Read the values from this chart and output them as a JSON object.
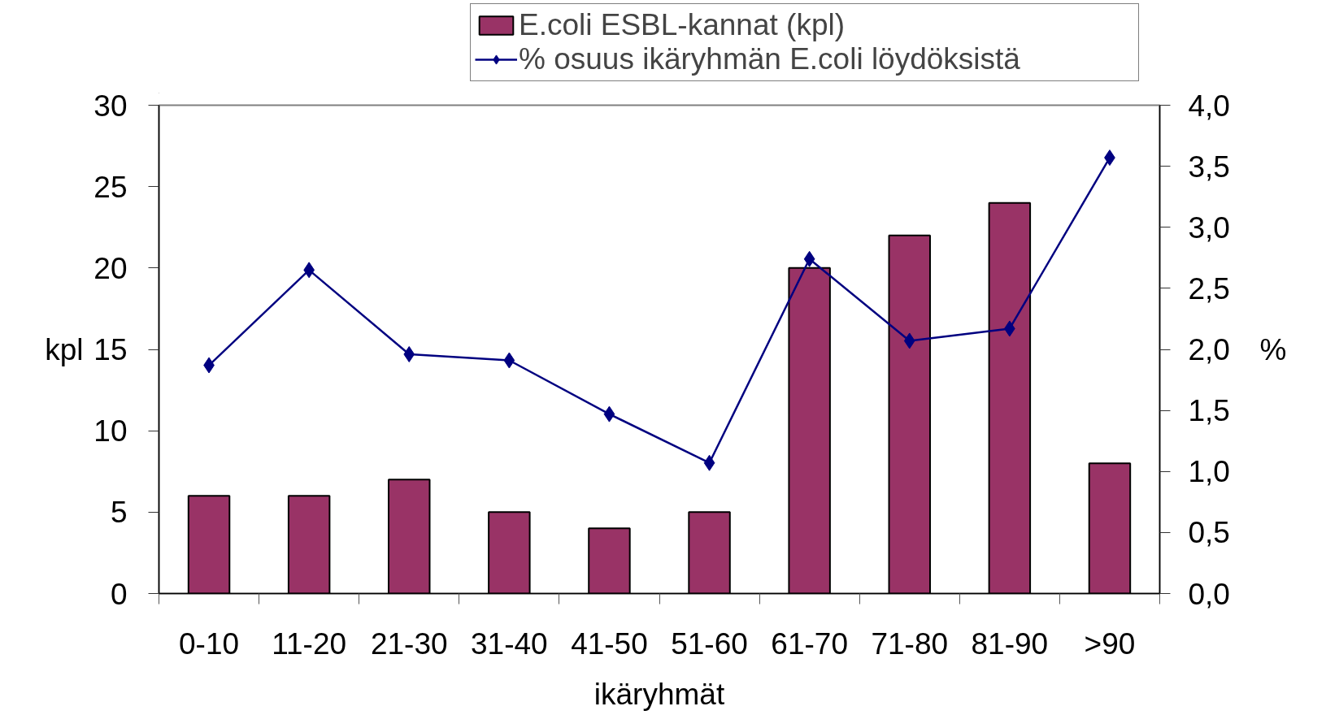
{
  "chart_data": {
    "type": "bar",
    "xlabel": "ikäryhmät",
    "ylabel": "kpl",
    "y2label": "%",
    "categories": [
      "0-10",
      "11-20",
      "21-30",
      "31-40",
      "41-50",
      "51-60",
      "61-70",
      "71-80",
      "81-90",
      ">90"
    ],
    "series": [
      {
        "name": "E.coli ESBL-kannat (kpl)",
        "color": "#993366",
        "values": [
          6,
          6,
          7,
          5,
          4,
          5,
          20,
          22,
          24,
          8
        ]
      },
      {
        "name": "% osuus ikäryhmän E.coli löydöksistä",
        "type": "line",
        "axis": "y2",
        "color": "#000080",
        "values": [
          1.87,
          2.65,
          1.96,
          1.91,
          1.47,
          1.07,
          2.74,
          2.07,
          2.17,
          3.57
        ]
      }
    ],
    "ylim": [
      0,
      30
    ],
    "yticks": [
      0,
      5,
      10,
      15,
      20,
      25,
      30
    ],
    "y2lim": [
      0,
      4
    ],
    "y2ticks": [
      {
        "value": 0,
        "label": "0,0"
      },
      {
        "value": 0.5,
        "label": "0,5"
      },
      {
        "value": 1,
        "label": "1,0"
      },
      {
        "value": 1.5,
        "label": "1,5"
      },
      {
        "value": 2,
        "label": "2,0"
      },
      {
        "value": 2.5,
        "label": "2,5"
      },
      {
        "value": 3,
        "label": "3,0"
      },
      {
        "value": 3.5,
        "label": "3,5"
      },
      {
        "value": 4,
        "label": "4,0"
      }
    ],
    "marker": "diamond",
    "grid": false,
    "legend": "top"
  }
}
